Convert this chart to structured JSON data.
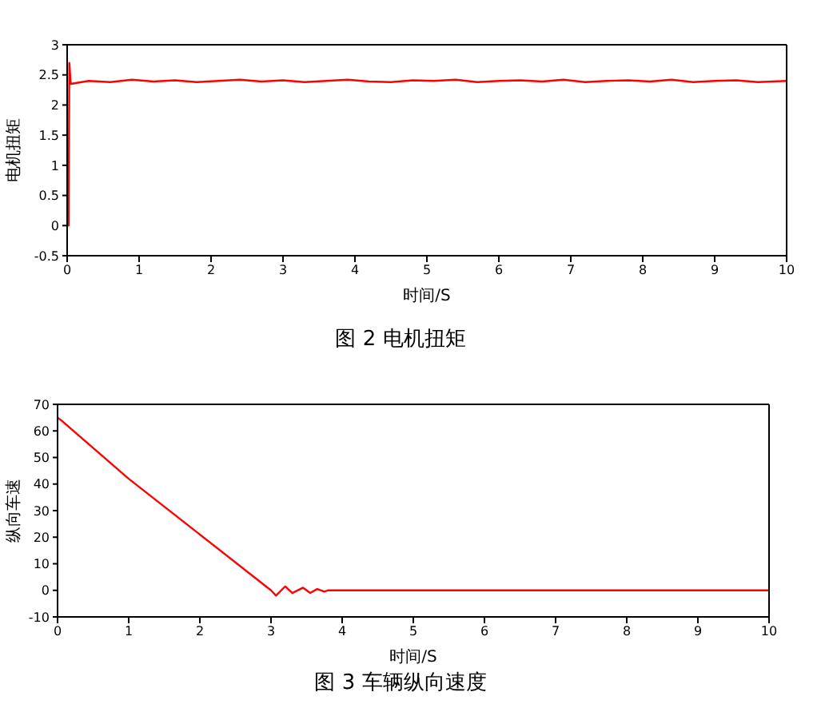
{
  "chart_data": [
    {
      "type": "line",
      "title": "图 2 电机扭矩",
      "xlabel": "时间/S",
      "ylabel": "电机扭矩",
      "xlim": [
        0,
        10
      ],
      "xticks": [
        0,
        1,
        2,
        3,
        4,
        5,
        6,
        7,
        8,
        9,
        10
      ],
      "ylim": [
        -0.5,
        3
      ],
      "yticks": [
        -0.5,
        0,
        0.5,
        1,
        1.5,
        2,
        2.5,
        3
      ],
      "marker": "none",
      "line_style": "solid",
      "series": [
        {
          "color": "#ff0000",
          "x": [
            0,
            0.02,
            0.03,
            0.05,
            0.3,
            0.6,
            0.9,
            1.2,
            1.5,
            1.8,
            2.1,
            2.4,
            2.7,
            3.0,
            3.3,
            3.6,
            3.9,
            4.2,
            4.5,
            4.8,
            5.1,
            5.4,
            5.7,
            6.0,
            6.3,
            6.6,
            6.9,
            7.2,
            7.5,
            7.8,
            8.1,
            8.4,
            8.7,
            9.0,
            9.3,
            9.6,
            10
          ],
          "values": [
            0,
            0,
            2.7,
            2.35,
            2.4,
            2.38,
            2.42,
            2.39,
            2.41,
            2.38,
            2.4,
            2.42,
            2.39,
            2.41,
            2.38,
            2.4,
            2.42,
            2.39,
            2.38,
            2.41,
            2.4,
            2.42,
            2.38,
            2.4,
            2.41,
            2.39,
            2.42,
            2.38,
            2.4,
            2.41,
            2.39,
            2.42,
            2.38,
            2.4,
            2.41,
            2.38,
            2.4
          ]
        }
      ]
    },
    {
      "type": "line",
      "title": "图 3 车辆纵向速度",
      "xlabel": "时间/S",
      "ylabel": "纵向车速",
      "xlim": [
        0,
        10
      ],
      "xticks": [
        0,
        1,
        2,
        3,
        4,
        5,
        6,
        7,
        8,
        9,
        10
      ],
      "ylim": [
        -10,
        70
      ],
      "yticks": [
        -10,
        0,
        10,
        20,
        30,
        40,
        50,
        60,
        70
      ],
      "marker": "none",
      "line_style": "solid",
      "series": [
        {
          "color": "#ff0000",
          "x": [
            0,
            0.05,
            1,
            2,
            3,
            3.07,
            3.2,
            3.3,
            3.45,
            3.55,
            3.65,
            3.75,
            3.8,
            10
          ],
          "values": [
            65,
            64,
            42,
            21,
            0,
            -2,
            1.5,
            -1,
            1,
            -1,
            0.5,
            -0.5,
            0,
            0
          ]
        }
      ]
    }
  ]
}
